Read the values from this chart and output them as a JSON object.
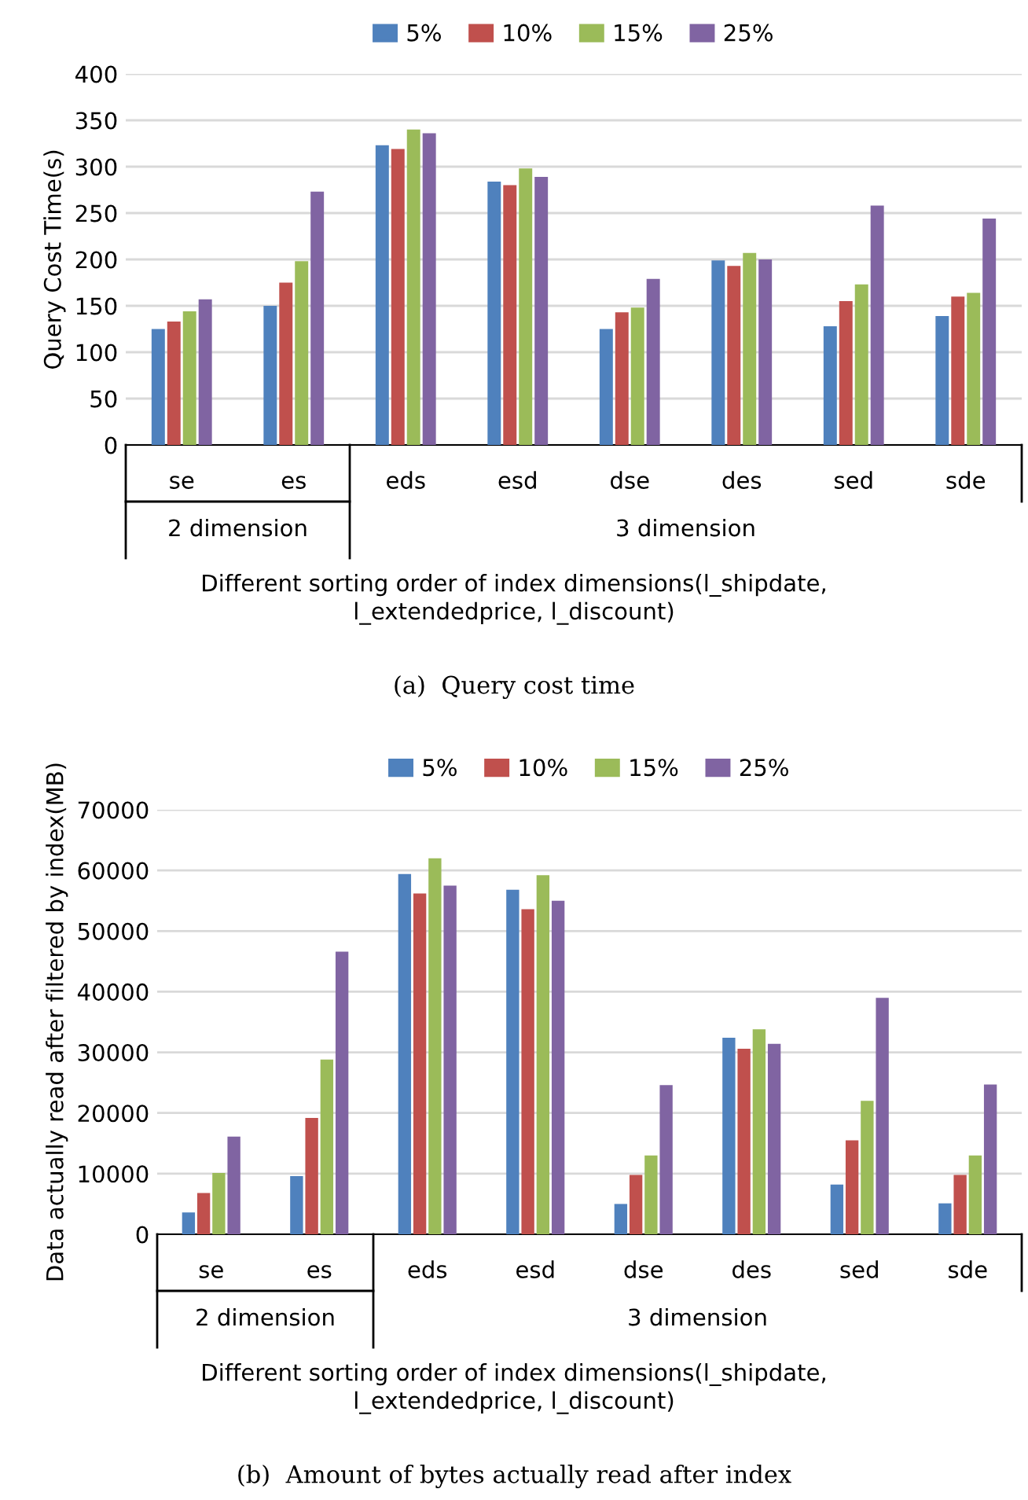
{
  "chart_data": [
    {
      "type": "bar",
      "title": "(a)  Query cost time",
      "ylabel": "Query Cost Time(s)",
      "xlabel": "Different sorting order of index dimensions(l_shipdate,\nl_extendedprice, l_discount)",
      "categories": [
        "se",
        "es",
        "eds",
        "esd",
        "dse",
        "des",
        "sed",
        "sde"
      ],
      "annotations": [
        "2 dimension",
        "3 dimension"
      ],
      "series": [
        {
          "name": "5%",
          "color": "#4f81bd",
          "values": [
            125,
            150,
            323,
            284,
            125,
            199,
            128,
            139
          ]
        },
        {
          "name": "10%",
          "color": "#c0504d",
          "values": [
            133,
            175,
            319,
            280,
            143,
            193,
            155,
            160
          ]
        },
        {
          "name": "15%",
          "color": "#9bbb59",
          "values": [
            144,
            198,
            340,
            298,
            148,
            207,
            173,
            164
          ]
        },
        {
          "name": "25%",
          "color": "#8064a2",
          "values": [
            157,
            273,
            336,
            289,
            179,
            200,
            258,
            244
          ]
        }
      ],
      "ylim": [
        0,
        400
      ],
      "yticks": [
        0,
        50,
        100,
        150,
        200,
        250,
        300,
        350,
        400
      ],
      "grid": "y",
      "legend": "top"
    },
    {
      "type": "bar",
      "title": "(b)  Amount of bytes actually read after index",
      "ylabel": "Data actually read after filtered by index(MB)",
      "xlabel": "Different sorting order of index dimensions(l_shipdate,\nl_extendedprice, l_discount)",
      "categories": [
        "se",
        "es",
        "eds",
        "esd",
        "dse",
        "des",
        "sed",
        "sde"
      ],
      "annotations": [
        "2 dimension",
        "3 dimension"
      ],
      "series": [
        {
          "name": "5%",
          "color": "#4f81bd",
          "values": [
            3600,
            9600,
            59400,
            56800,
            5000,
            32400,
            8200,
            5100
          ]
        },
        {
          "name": "10%",
          "color": "#c0504d",
          "values": [
            6800,
            19200,
            56200,
            53600,
            9800,
            30600,
            15500,
            9800
          ]
        },
        {
          "name": "15%",
          "color": "#9bbb59",
          "values": [
            10100,
            28800,
            62000,
            59200,
            13000,
            33800,
            22000,
            13000
          ]
        },
        {
          "name": "25%",
          "color": "#8064a2",
          "values": [
            16100,
            46600,
            57500,
            55000,
            24600,
            31400,
            39000,
            24700
          ]
        }
      ],
      "ylim": [
        0,
        70000
      ],
      "yticks": [
        0,
        10000,
        20000,
        30000,
        40000,
        50000,
        60000,
        70000
      ],
      "grid": "y",
      "legend": "top"
    }
  ]
}
